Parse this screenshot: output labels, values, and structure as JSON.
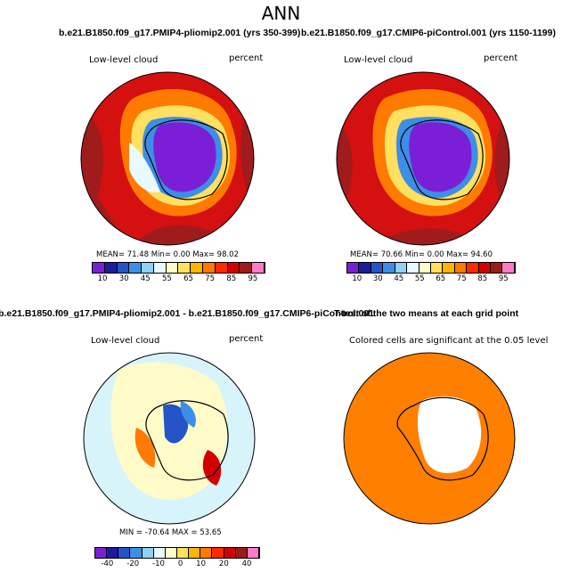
{
  "super_title": "ANN",
  "panels": {
    "tl": {
      "title": "b.e21.B1850.f09_g17.PMIP4-pliomip2.001 (yrs 350-399)",
      "left": "Low-level cloud",
      "right": "percent",
      "stats": "MEAN= 71.48  Min= 0.00  Max= 98.02"
    },
    "tr": {
      "title": "b.e21.B1850.f09_g17.CMIP6-piControl.001 (yrs 1150-1199)",
      "left": "Low-level cloud",
      "right": "percent",
      "stats": "MEAN= 70.66  Min= 0.00  Max= 94.60"
    },
    "bl": {
      "title": "b.e21.B1850.f09_g17.PMIP4-pliomip2.001 - b.e21.B1850.f09_g17.CMIP6-piControl.001",
      "left": "Low-level cloud",
      "right": "percent",
      "stats": "MIN = -70.64  MAX = 53.65"
    },
    "br": {
      "title": "T-test of the two means at each grid point",
      "note": "Colored cells are significant at the 0.05 level"
    }
  },
  "colorbar_abs": {
    "colors": [
      "#7b1fd6",
      "#1b1b9e",
      "#2553c8",
      "#3d8ee6",
      "#8fd0f4",
      "#e8fafd",
      "#fffbc8",
      "#ffe060",
      "#ffb400",
      "#ff7a00",
      "#ff2a00",
      "#d40000",
      "#9c1a1a",
      "#ff7bc8"
    ],
    "ticks": [
      "10",
      "30",
      "45",
      "55",
      "65",
      "75",
      "85",
      "95"
    ]
  },
  "colorbar_diff": {
    "colors": [
      "#7b1fd6",
      "#1b1b9e",
      "#2553c8",
      "#3d8ee6",
      "#8fd0f4",
      "#e8fafd",
      "#fffbc8",
      "#ffe060",
      "#ffb400",
      "#ff7a00",
      "#ff2a00",
      "#d40000",
      "#9c1a1a",
      "#ff7bc8"
    ],
    "ticks": [
      "-40",
      "-20",
      "-10",
      "0",
      "10",
      "20",
      "40"
    ]
  },
  "colors": {
    "ocean_high": "#a01c1c",
    "ocean_mid": "#d41010",
    "ice": "#8a2be2",
    "diff_bg": "#d8f4fb",
    "ttest": "#ff7f00"
  }
}
